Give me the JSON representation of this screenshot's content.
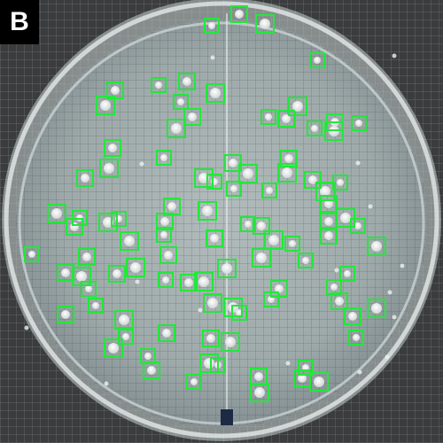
{
  "panel_label": "B",
  "colors": {
    "background_grid": "#3a3c3d",
    "dish_fill": "#9aa6a8",
    "colony": "#e9eeec",
    "detection_box": "#22e83a"
  },
  "colony_count": 118
}
